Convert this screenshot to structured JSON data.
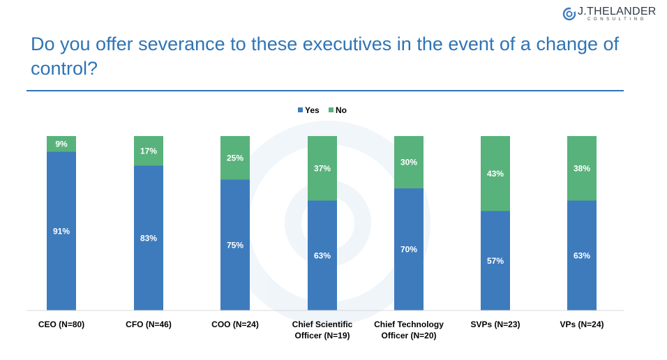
{
  "brand": {
    "name": "J.THELANDER",
    "sub": "CONSULTING"
  },
  "header": {
    "title": "Do you offer severance to these executives in the event of a change of control?"
  },
  "colors": {
    "yes": "#3d7bbd",
    "no": "#58b27b",
    "accent": "#2e74b5"
  },
  "chart_data": {
    "type": "bar",
    "stacked": true,
    "title": "",
    "xlabel": "",
    "ylabel": "",
    "ylim": [
      0,
      100
    ],
    "legend_position": "top-center",
    "categories": [
      [
        "CEO (N=80)"
      ],
      [
        "CFO (N=46)"
      ],
      [
        "COO (N=24)"
      ],
      [
        "Chief Scientific",
        "Officer (N=19)"
      ],
      [
        "Chief Technology",
        "Officer (N=20)"
      ],
      [
        "SVPs (N=23)"
      ],
      [
        "VPs (N=24)"
      ]
    ],
    "series": [
      {
        "name": "Yes",
        "values": [
          91,
          83,
          75,
          63,
          70,
          57,
          63
        ],
        "labels": [
          "91%",
          "83%",
          "75%",
          "63%",
          "70%",
          "57%",
          "63%"
        ]
      },
      {
        "name": "No",
        "values": [
          9,
          17,
          25,
          37,
          30,
          43,
          38
        ],
        "labels": [
          "9%",
          "17%",
          "25%",
          "37%",
          "30%",
          "43%",
          "38%"
        ]
      }
    ]
  }
}
